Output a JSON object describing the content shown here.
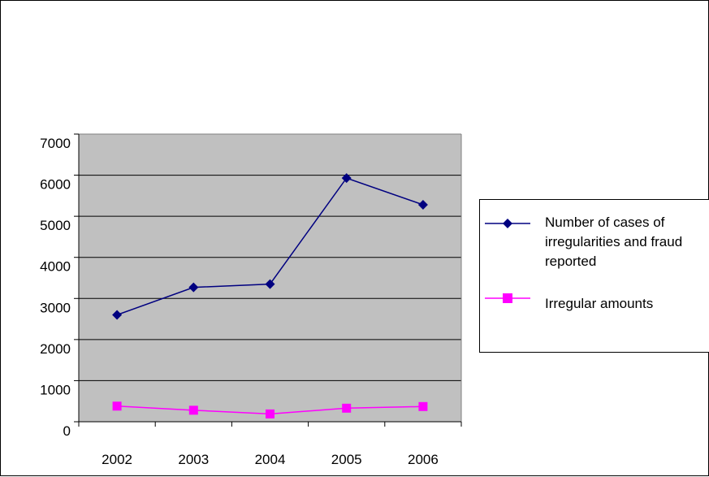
{
  "chart_data": {
    "type": "line",
    "categories": [
      "2002",
      "2003",
      "2004",
      "2005",
      "2006"
    ],
    "series": [
      {
        "name": "Number of cases of irregularities and fraud reported",
        "values": [
          2600,
          3270,
          3350,
          5930,
          5280
        ],
        "color": "#000080",
        "marker": "diamond"
      },
      {
        "name": "Irregular amounts",
        "values": [
          380,
          280,
          190,
          330,
          370
        ],
        "color": "#FF00FF",
        "marker": "square"
      }
    ],
    "y_ticks": [
      "0",
      "1000",
      "2000",
      "3000",
      "4000",
      "5000",
      "6000",
      "7000"
    ],
    "ylim": [
      0,
      7000
    ],
    "grid": true,
    "plot_background": "#C0C0C0",
    "legend_position": "right"
  }
}
